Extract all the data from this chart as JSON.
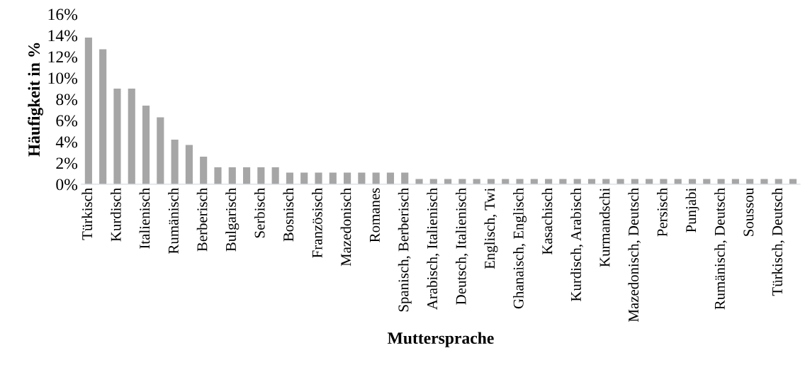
{
  "chart_data": {
    "type": "bar",
    "xlabel": "Muttersprache",
    "ylabel": "Häufigkeit in %",
    "categories": [
      "Türkisch",
      null,
      "Kurdisch",
      null,
      "Italienisch",
      null,
      "Rumänisch",
      null,
      "Berberisch",
      null,
      "Bulgarisch",
      null,
      "Serbisch",
      null,
      "Bosnisch",
      null,
      "Französisch",
      null,
      "Mazedonisch",
      null,
      "Romanes",
      null,
      "Spanisch, Berberisch",
      null,
      "Arabisch, Italienisch",
      null,
      "Deutsch, Italienisch",
      null,
      "Englisch, Twi",
      null,
      "Ghanaisch, Englisch",
      null,
      "Kasachisch",
      null,
      "Kurdisch, Arabisch",
      null,
      "Kurmandschi",
      null,
      "Mazedonisch, Deutsch",
      null,
      "Persisch",
      null,
      "Punjabi",
      null,
      "Rumänisch, Deutsch",
      null,
      "Soussou",
      null,
      "Türkisch, Deutsch",
      null
    ],
    "values": [
      13.8,
      12.7,
      9.0,
      9.0,
      7.4,
      6.3,
      4.2,
      3.7,
      2.6,
      1.6,
      1.6,
      1.6,
      1.6,
      1.6,
      1.1,
      1.1,
      1.1,
      1.1,
      1.1,
      1.1,
      1.1,
      1.1,
      1.1,
      0.5,
      0.5,
      0.5,
      0.5,
      0.5,
      0.5,
      0.5,
      0.5,
      0.5,
      0.5,
      0.5,
      0.5,
      0.5,
      0.5,
      0.5,
      0.5,
      0.5,
      0.5,
      0.5,
      0.5,
      0.5,
      0.5,
      0.5,
      0.5,
      0.5,
      0.5,
      0.5
    ],
    "color": "#a6a6a6",
    "ylim": [
      0,
      16
    ],
    "yticks": [
      {
        "value": 0,
        "label": "0%"
      },
      {
        "value": 2,
        "label": "2%"
      },
      {
        "value": 4,
        "label": "4%"
      },
      {
        "value": 6,
        "label": "6%"
      },
      {
        "value": 8,
        "label": "8%"
      },
      {
        "value": 10,
        "label": "10%"
      },
      {
        "value": 12,
        "label": "12%"
      },
      {
        "value": 14,
        "label": "14%"
      },
      {
        "value": 16,
        "label": "16%"
      }
    ],
    "grid": false,
    "legend": false
  }
}
